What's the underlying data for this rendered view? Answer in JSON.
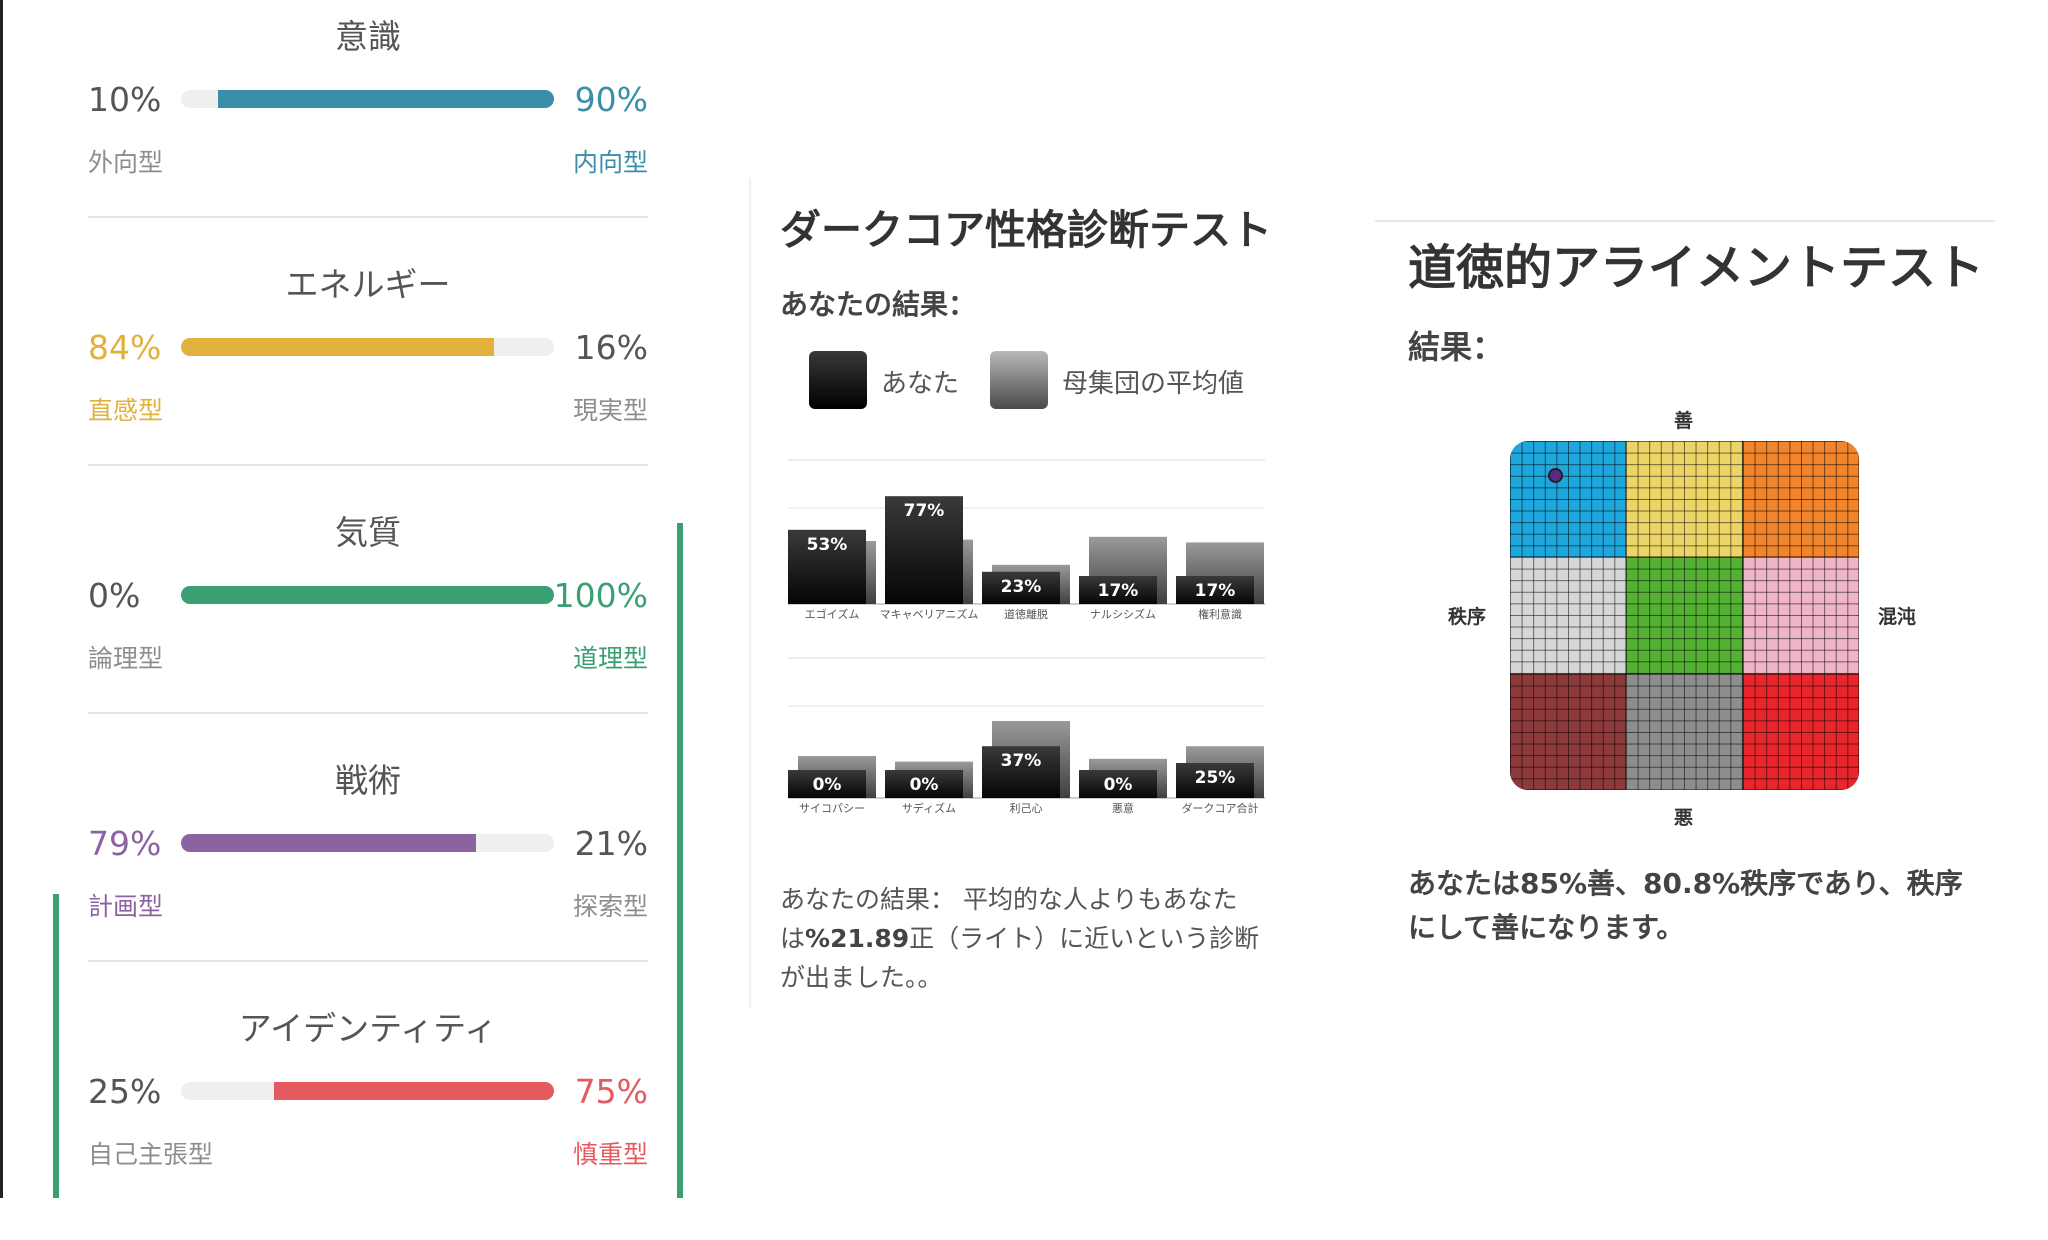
{
  "colors": {
    "blue": "#3a8ea8",
    "yellow": "#e2b13c",
    "green": "#3a9f72",
    "purple": "#8a63a0",
    "red": "#e45a5f",
    "grey": "#8e8e8e"
  },
  "traits": [
    {
      "title": "意識",
      "left_pct": "10%",
      "right_pct": "90%",
      "left_type": "外向型",
      "right_type": "内向型",
      "value": 90,
      "side": "right",
      "color": "#3a8ea8"
    },
    {
      "title": "エネルギー",
      "left_pct": "84%",
      "right_pct": "16%",
      "left_type": "直感型",
      "right_type": "現実型",
      "value": 84,
      "side": "left",
      "color": "#e2b13c"
    },
    {
      "title": "気質",
      "left_pct": "0%",
      "right_pct": "100%",
      "left_type": "論理型",
      "right_type": "道理型",
      "value": 100,
      "side": "right",
      "color": "#3a9f72"
    },
    {
      "title": "戦術",
      "left_pct": "79%",
      "right_pct": "21%",
      "left_type": "計画型",
      "right_type": "探索型",
      "value": 79,
      "side": "left",
      "color": "#8a63a0"
    },
    {
      "title": "アイデンティティ",
      "left_pct": "25%",
      "right_pct": "75%",
      "left_type": "自己主張型",
      "right_type": "慎重型",
      "value": 75,
      "side": "right",
      "color": "#e45a5f"
    }
  ],
  "dark_core": {
    "title": "ダークコア性格診断テスト",
    "subtitle": "あなたの結果：",
    "legend_you": "あなた",
    "legend_avg": "母集団の平均値",
    "result_prefix": "あなたの結果： 平均的な人よりもあなたは",
    "result_value": "%21.89",
    "result_suffix": "正（ライト）に近いという診断が出ました。。"
  },
  "chart_data": {
    "type": "bar",
    "title": "",
    "series": [
      {
        "name": "あなた",
        "values": [
          53,
          77,
          23,
          17,
          17,
          0,
          0,
          37,
          0,
          25
        ]
      },
      {
        "name": "母集団の平均値",
        "values": [
          45,
          46,
          28,
          48,
          44,
          30,
          26,
          55,
          28,
          37
        ]
      }
    ],
    "categories": [
      "エゴイズム",
      "マキャベリアニズム",
      "道徳離脱",
      "ナルシシズム",
      "権利意識",
      "サイコパシー",
      "サディズム",
      "利己心",
      "悪意",
      "ダークコア合計"
    ],
    "value_labels": [
      "53%",
      "77%",
      "23%",
      "17%",
      "17%",
      "0%",
      "0%",
      "37%",
      "0%",
      "25%"
    ],
    "ylim": [
      0,
      100
    ],
    "grid": true,
    "legend": "top"
  },
  "alignment": {
    "title": "道徳的アライメントテスト",
    "subtitle": "結果：",
    "top_label": "善",
    "bottom_label": "悪",
    "left_label": "秩序",
    "right_label": "混沌",
    "cell_colors": [
      "#1ea7dd",
      "#ecd566",
      "#f2842b",
      "#d6d6d6",
      "#55b134",
      "#f0b6c8",
      "#8f3a3a",
      "#8d8d8d",
      "#e8262b"
    ],
    "good_pct": 85,
    "lawful_pct": 80.8,
    "result": "あなたは85%善、80.8%秩序であり、秩序にして善になります。"
  }
}
